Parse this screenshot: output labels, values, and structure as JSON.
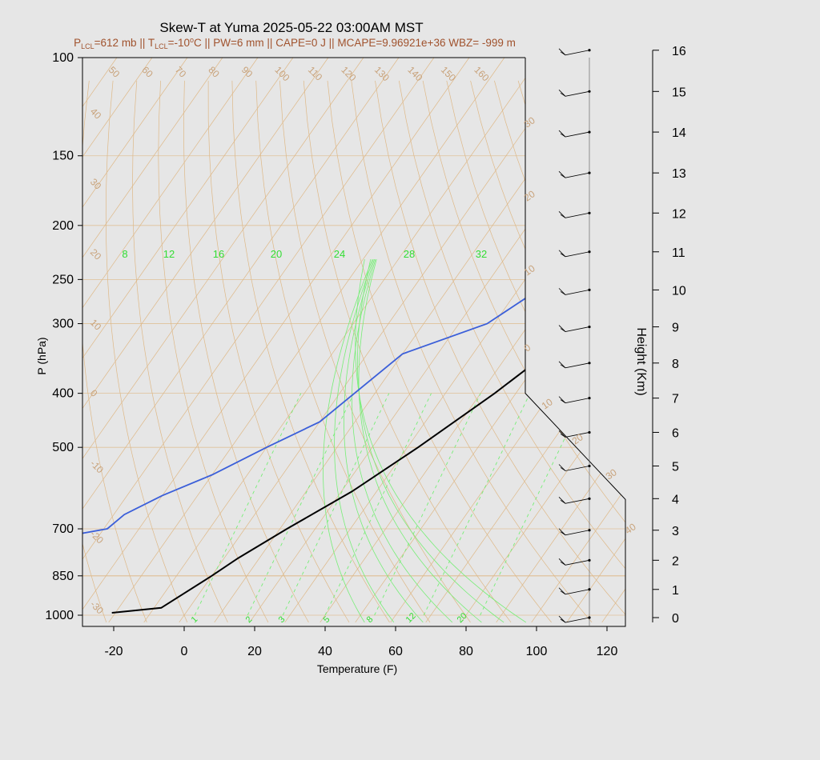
{
  "title": "Skew-T at Yuma 2025-05-22 03:00AM MST",
  "subtitle": {
    "plcl": "=612 mb || T",
    "tlcl": "=-10",
    "rest": "C || PW=6 mm || CAPE=0 J || MCAPE=9.96921e+36 WBZ= -999 m",
    "p_letter": "P",
    "lcl_sub": "LCL",
    "t_letter": "T",
    "deg": "o"
  },
  "chart_data": {
    "type": "line",
    "xlabel": "Temperature (F)",
    "ylabel": "P (hPa)",
    "y2label": "Height (Km)",
    "xlim": [
      -28,
      125
    ],
    "ylim": [
      1030,
      100
    ],
    "y_scale": "log",
    "x_ticks": [
      -20,
      0,
      20,
      40,
      60,
      80,
      100,
      120
    ],
    "p_ticks": [
      100,
      150,
      200,
      250,
      300,
      400,
      500,
      700,
      850,
      1000
    ],
    "height_ticks": [
      0,
      1,
      2,
      3,
      4,
      5,
      6,
      7,
      8,
      9,
      10,
      11,
      12,
      13,
      14,
      15,
      16
    ],
    "height_pressures": [
      1010,
      899,
      797,
      704,
      618,
      540,
      470,
      408,
      353,
      304,
      261,
      223,
      190,
      161,
      136,
      115,
      97
    ],
    "isotherm_labels": [
      "50",
      "60",
      "70",
      "80",
      "90",
      "100",
      "110",
      "120",
      "130",
      "140",
      "150",
      "160"
    ],
    "isotherm_left_labels": [
      "40",
      "30",
      "20",
      "10",
      "0",
      "-10",
      "-20",
      "-30"
    ],
    "dry_adiabat_labels": [
      "30",
      "20",
      "10",
      "0",
      "10",
      "20",
      "30",
      "40"
    ],
    "mixing_ratio_labels": [
      "8",
      "12",
      "16",
      "20",
      "24",
      "28",
      "32"
    ],
    "mixing_ratio_bottom_labels": [
      "1",
      "2",
      "3",
      "5",
      "8",
      "12",
      "20"
    ],
    "series": [
      {
        "name": "Temperature",
        "color": "#000000",
        "points": [
          [
            100,
            118
          ],
          [
            130,
            90
          ],
          [
            170,
            72
          ],
          [
            200,
            68
          ],
          [
            250,
            62
          ],
          [
            300,
            56
          ],
          [
            400,
            44
          ],
          [
            500,
            33
          ],
          [
            600,
            23
          ],
          [
            700,
            12
          ],
          [
            790,
            4
          ],
          [
            850,
            0
          ],
          [
            970,
            -8
          ],
          [
            990,
            -21
          ]
        ]
      },
      {
        "name": "Dew point",
        "color": "#3b5fd9",
        "points": [
          [
            100,
            87
          ],
          [
            130,
            64
          ],
          [
            170,
            50
          ],
          [
            200,
            48
          ],
          [
            240,
            40
          ],
          [
            260,
            36
          ],
          [
            300,
            28
          ],
          [
            340,
            10
          ],
          [
            450,
            0
          ],
          [
            500,
            -10
          ],
          [
            560,
            -20
          ],
          [
            610,
            -30
          ],
          [
            660,
            -37
          ],
          [
            700,
            -39
          ],
          [
            750,
            -62
          ],
          [
            785,
            -55
          ],
          [
            840,
            -42
          ],
          [
            880,
            -38
          ],
          [
            900,
            -35
          ],
          [
            920,
            -44
          ],
          [
            960,
            -35
          ],
          [
            1005,
            -43
          ]
        ]
      }
    ],
    "wind_barbs_km": [
      16,
      15,
      14,
      13,
      12,
      11,
      10,
      9,
      8,
      7,
      6,
      5,
      4,
      3,
      2,
      1,
      0
    ]
  },
  "colors": {
    "isotherm": "#deb887",
    "mixing_ratio": "#77ee77",
    "temperature": "#000000",
    "dewpoint": "#3b5fd9",
    "subtitle": "#a0522d"
  }
}
